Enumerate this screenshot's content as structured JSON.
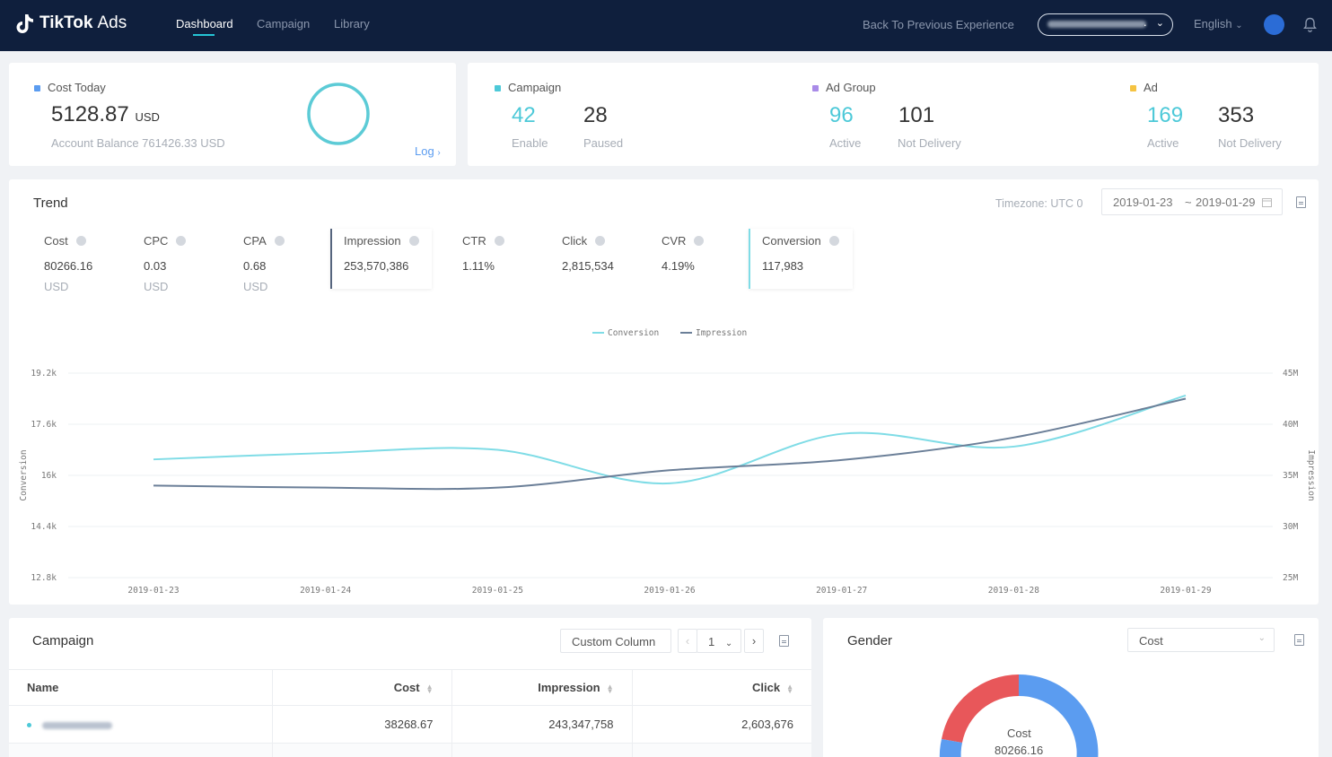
{
  "nav": {
    "brand_main": "TikTok",
    "brand_sub": "Ads",
    "tabs": [
      "Dashboard",
      "Campaign",
      "Library"
    ],
    "back_link": "Back To Previous Experience",
    "account_dot": ".",
    "language": "English"
  },
  "cost_today": {
    "label": "Cost Today",
    "value": "5128.87",
    "unit": "USD",
    "balance": "Account Balance 761426.33 USD",
    "log_link": "Log"
  },
  "summary": {
    "campaign": {
      "label": "Campaign",
      "n1": "42",
      "l1": "Enable",
      "n2": "28",
      "l2": "Paused"
    },
    "ad_group": {
      "label": "Ad Group",
      "n1": "96",
      "l1": "Active",
      "n2": "101",
      "l2": "Not Delivery"
    },
    "ad": {
      "label": "Ad",
      "n1": "169",
      "l1": "Active",
      "n2": "353",
      "l2": "Not Delivery"
    }
  },
  "trend": {
    "title": "Trend",
    "timezone": "Timezone: UTC 0",
    "date_from": "2019-01-23",
    "date_sep": "~",
    "date_to": "2019-01-29",
    "metrics": [
      {
        "name": "Cost",
        "value": "80266.16",
        "unit": "USD"
      },
      {
        "name": "CPC",
        "value": "0.03",
        "unit": "USD"
      },
      {
        "name": "CPA",
        "value": "0.68",
        "unit": "USD"
      },
      {
        "name": "Impression",
        "value": "253,570,386",
        "unit": ""
      },
      {
        "name": "CTR",
        "value": "1.11%",
        "unit": ""
      },
      {
        "name": "Click",
        "value": "2,815,534",
        "unit": ""
      },
      {
        "name": "CVR",
        "value": "4.19%",
        "unit": ""
      },
      {
        "name": "Conversion",
        "value": "117,983",
        "unit": ""
      }
    ]
  },
  "chart_data": {
    "type": "line",
    "x": [
      "2019-01-23",
      "2019-01-24",
      "2019-01-25",
      "2019-01-26",
      "2019-01-27",
      "2019-01-28",
      "2019-01-29"
    ],
    "series": [
      {
        "name": "Conversion",
        "axis": "left",
        "color": "#7fdce6",
        "values": [
          16500,
          16700,
          16800,
          15750,
          17300,
          16900,
          18500
        ]
      },
      {
        "name": "Impression",
        "axis": "right",
        "color": "#6b7f98",
        "values": [
          34000,
          33800,
          33800,
          35500,
          36500,
          38700,
          42500
        ]
      }
    ],
    "y_left": {
      "label": "Conversion",
      "ticks": [
        "12.8k",
        "14.4k",
        "16k",
        "17.6k",
        "19.2k"
      ],
      "ylim": [
        12800,
        19200
      ]
    },
    "y_right": {
      "label": "Impression",
      "ticks": [
        "25M",
        "30M",
        "35M",
        "40M",
        "45M"
      ],
      "ylim": [
        25000,
        45000
      ]
    },
    "legend_position": "top-center",
    "grid": true
  },
  "campaign_table": {
    "title": "Campaign",
    "custom_column": "Custom Column",
    "page": "1",
    "columns": [
      "Name",
      "Cost",
      "Impression",
      "Click"
    ],
    "rows": [
      {
        "cost": "38268.67",
        "impression": "243,347,758",
        "click": "2,603,676"
      }
    ]
  },
  "gender": {
    "title": "Gender",
    "select": "Cost",
    "center_label": "Cost",
    "center_value": "80266.16"
  },
  "colors": {
    "nav_bg": "#0f1f3d",
    "accent": "#4dc9d8",
    "impression_line": "#6b7f98",
    "donut_female": "#e8575a",
    "donut_male": "#5b9cf0"
  }
}
